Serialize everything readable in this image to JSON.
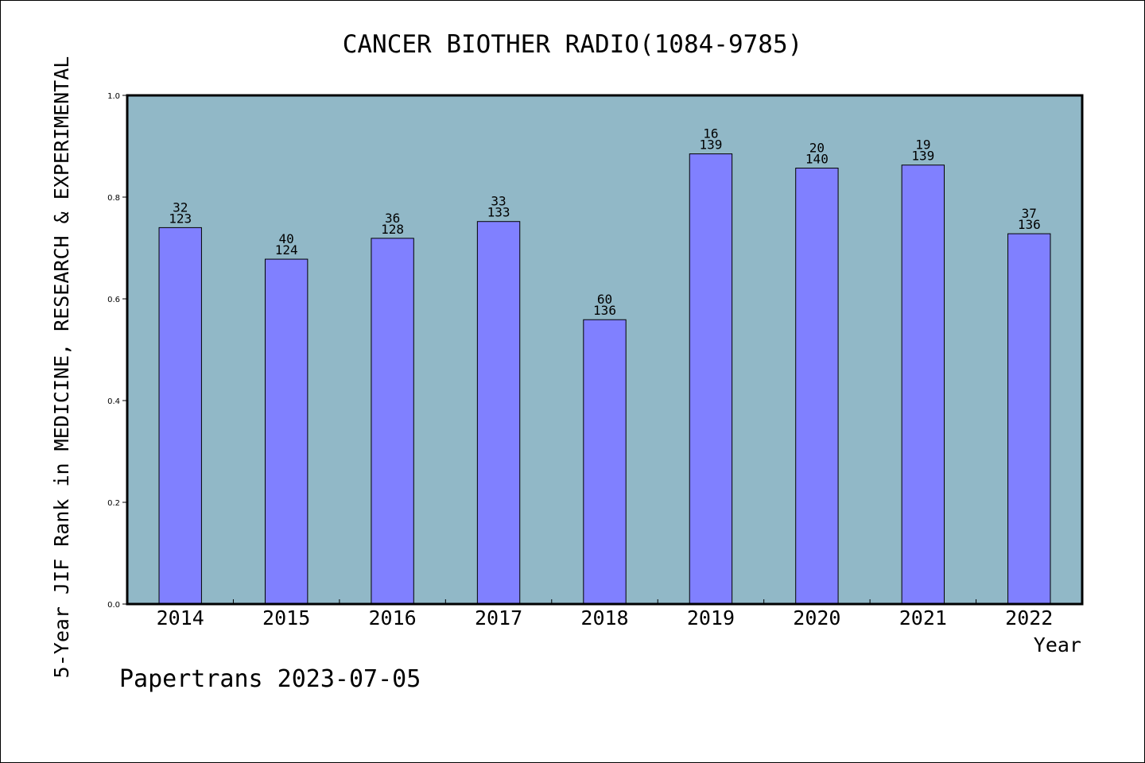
{
  "footer": "Papertrans 2023-07-05",
  "colors": {
    "plot_bg": "#91b8c7",
    "bar": "#8080ff",
    "bar_edge": "#000000"
  },
  "chart_data": {
    "type": "bar",
    "title": "CANCER BIOTHER RADIO(1084-9785)",
    "xlabel": "Year",
    "ylabel": "5-Year JIF Rank in MEDICINE, RESEARCH & EXPERIMENTAL",
    "ylim": [
      0,
      1.0
    ],
    "yticks": [
      "0.0",
      "0.2",
      "0.4",
      "0.6",
      "0.8",
      "1.0"
    ],
    "categories": [
      "2014",
      "2015",
      "2016",
      "2017",
      "2018",
      "2019",
      "2020",
      "2021",
      "2022"
    ],
    "values": [
      0.74,
      0.678,
      0.719,
      0.752,
      0.559,
      0.885,
      0.857,
      0.863,
      0.728
    ],
    "data_labels": [
      [
        "32",
        "123"
      ],
      [
        "40",
        "124"
      ],
      [
        "36",
        "128"
      ],
      [
        "33",
        "133"
      ],
      [
        "60",
        "136"
      ],
      [
        "16",
        "139"
      ],
      [
        "20",
        "140"
      ],
      [
        "19",
        "139"
      ],
      [
        "37",
        "136"
      ]
    ],
    "grid": false,
    "legend": "none"
  }
}
